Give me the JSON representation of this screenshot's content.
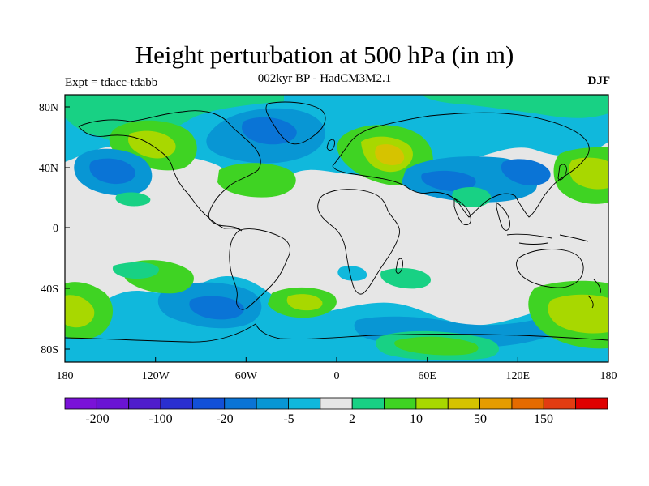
{
  "title": "Height perturbation at 500 hPa (in m)",
  "subtitle": "002kyr BP - HadCM3M2.1",
  "expt_label": "Expt = tdacc-tdabb",
  "season": "DJF",
  "map": {
    "lat_ticks": [
      "80N",
      "40N",
      "0",
      "40S",
      "80S"
    ],
    "lon_ticks": [
      "180",
      "120W",
      "60W",
      "0",
      "60E",
      "120E",
      "180"
    ]
  },
  "colorbar": {
    "colors": [
      "#7a12d8",
      "#6a14d4",
      "#4f1ccc",
      "#2a2fd0",
      "#1250d8",
      "#0a74d6",
      "#0896d4",
      "#10b8dc",
      "#e6e6e6",
      "#18d184",
      "#3fd323",
      "#a8d800",
      "#d6c300",
      "#e59c00",
      "#e56b00",
      "#e23c12",
      "#e00000"
    ],
    "labels": [
      "-200",
      "-100",
      "-20",
      "-5",
      "2",
      "10",
      "50",
      "150"
    ]
  },
  "palette": {
    "gray": "#e6e6e6",
    "cyan": "#10b8dc",
    "blue_light": "#0896d4",
    "blue": "#0a74d6",
    "blue_dark": "#1250d8",
    "teal": "#18d184",
    "green": "#3fd323",
    "yellow_green": "#a8d800",
    "yellow": "#d6c300"
  }
}
